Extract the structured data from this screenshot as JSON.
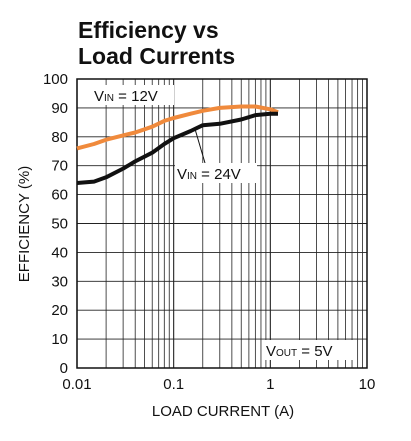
{
  "chart_data": {
    "type": "line",
    "title_line1": "Efficiency vs",
    "title_line2": "Load Currents",
    "xlabel": "LOAD CURRENT (A)",
    "ylabel": "EFFICIENCY (%)",
    "xscale": "log",
    "xlim": [
      0.01,
      10
    ],
    "ylim": [
      0,
      100
    ],
    "xticks": [
      {
        "value": 0.01,
        "label": "0.01"
      },
      {
        "value": 0.1,
        "label": "0.1"
      },
      {
        "value": 1,
        "label": "1"
      },
      {
        "value": 10,
        "label": "10"
      }
    ],
    "yticks": [
      0,
      10,
      20,
      30,
      40,
      50,
      60,
      70,
      80,
      90,
      100
    ],
    "grid": true,
    "series": [
      {
        "name": "VIN = 12V",
        "label_main": "V",
        "label_sub": "IN",
        "label_rest": " = 12V",
        "color": "#f08a3c",
        "x": [
          0.01,
          0.015,
          0.02,
          0.03,
          0.04,
          0.06,
          0.08,
          0.1,
          0.15,
          0.2,
          0.3,
          0.5,
          0.7,
          1.0,
          1.2
        ],
        "y": [
          76,
          77.5,
          79,
          80.5,
          81.5,
          83.5,
          85.5,
          86.5,
          88,
          89,
          90,
          90.5,
          90.5,
          89.5,
          88.5
        ]
      },
      {
        "name": "VIN = 24V",
        "label_main": "V",
        "label_sub": "IN",
        "label_rest": " = 24V",
        "color": "#111111",
        "x": [
          0.01,
          0.015,
          0.02,
          0.03,
          0.04,
          0.06,
          0.08,
          0.1,
          0.15,
          0.2,
          0.3,
          0.5,
          0.7,
          1.0,
          1.2
        ],
        "y": [
          64,
          64.5,
          66,
          69,
          71.5,
          74.5,
          77.5,
          79.5,
          82,
          84,
          84.5,
          86,
          87.5,
          88,
          88
        ]
      }
    ],
    "annotation": {
      "main": "V",
      "sub": "OUT",
      "rest": " = 5V"
    }
  }
}
